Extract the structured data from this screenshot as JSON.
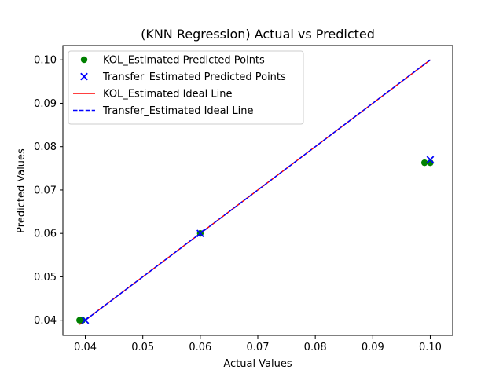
{
  "chart_data": {
    "type": "scatter",
    "title": "(KNN Regression) Actual vs Predicted",
    "xlabel": "Actual Values",
    "ylabel": "Predicted Values",
    "xlim": [
      0.0361,
      0.1039
    ],
    "ylim": [
      0.0365,
      0.1033
    ],
    "xticks": [
      0.04,
      0.05,
      0.06,
      0.07,
      0.08,
      0.09,
      0.1
    ],
    "xtick_labels": [
      "0.04",
      "0.05",
      "0.06",
      "0.07",
      "0.08",
      "0.09",
      "0.10"
    ],
    "yticks": [
      0.04,
      0.05,
      0.06,
      0.07,
      0.08,
      0.09,
      0.1
    ],
    "ytick_labels": [
      "0.04",
      "0.05",
      "0.06",
      "0.07",
      "0.08",
      "0.09",
      "0.10"
    ],
    "grid": false,
    "legend_position": "top-left",
    "series": [
      {
        "name": "KOL_Estimated Predicted Points",
        "kind": "scatter",
        "marker": "circle",
        "color": "#008000",
        "points": [
          [
            0.039,
            0.04
          ],
          [
            0.0395,
            0.04
          ],
          [
            0.06,
            0.06
          ],
          [
            0.099,
            0.0763
          ],
          [
            0.1,
            0.0763
          ]
        ]
      },
      {
        "name": "Transfer_Estimated Predicted Points",
        "kind": "scatter",
        "marker": "x",
        "color": "#0000ff",
        "points": [
          [
            0.04,
            0.04
          ],
          [
            0.06,
            0.06
          ],
          [
            0.1,
            0.077
          ]
        ]
      },
      {
        "name": "KOL_Estimated Ideal Line",
        "kind": "line",
        "style": "solid",
        "color": "#ff0000",
        "points": [
          [
            0.039,
            0.039
          ],
          [
            0.1,
            0.1
          ]
        ]
      },
      {
        "name": "Transfer_Estimated Ideal Line",
        "kind": "line",
        "style": "dashed",
        "color": "#0000ff",
        "points": [
          [
            0.04,
            0.04
          ],
          [
            0.1,
            0.1
          ]
        ]
      }
    ]
  }
}
